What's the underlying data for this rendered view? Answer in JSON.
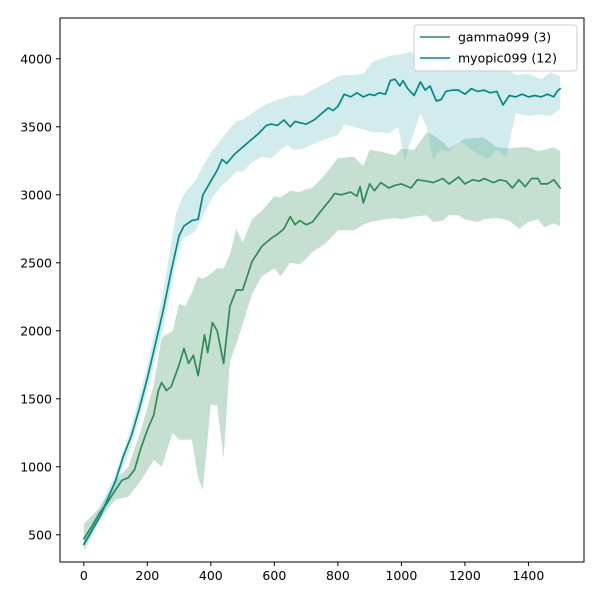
{
  "chart_data": {
    "type": "line",
    "title": "",
    "xlabel": "",
    "ylabel": "",
    "xlim": [
      -75,
      1575
    ],
    "ylim": [
      300,
      4300
    ],
    "xticks": [
      0,
      200,
      400,
      600,
      800,
      1000,
      1200,
      1400
    ],
    "yticks": [
      500,
      1000,
      1500,
      2000,
      2500,
      3000,
      3500,
      4000
    ],
    "grid": false,
    "legend_position": "top-right",
    "series": [
      {
        "name": "gamma099 (3)",
        "color": "#2e8b57",
        "band_color": "#2e8b57",
        "points": [
          [
            0,
            470
          ],
          [
            25,
            560
          ],
          [
            50,
            660
          ],
          [
            75,
            740
          ],
          [
            100,
            830
          ],
          [
            120,
            900
          ],
          [
            140,
            920
          ],
          [
            160,
            980
          ],
          [
            180,
            1140
          ],
          [
            200,
            1270
          ],
          [
            220,
            1380
          ],
          [
            235,
            1560
          ],
          [
            245,
            1620
          ],
          [
            260,
            1560
          ],
          [
            275,
            1590
          ],
          [
            300,
            1750
          ],
          [
            315,
            1870
          ],
          [
            330,
            1760
          ],
          [
            345,
            1820
          ],
          [
            360,
            1670
          ],
          [
            380,
            1970
          ],
          [
            390,
            1840
          ],
          [
            405,
            2060
          ],
          [
            420,
            2000
          ],
          [
            440,
            1760
          ],
          [
            460,
            2180
          ],
          [
            480,
            2300
          ],
          [
            500,
            2300
          ],
          [
            530,
            2510
          ],
          [
            560,
            2620
          ],
          [
            575,
            2650
          ],
          [
            590,
            2680
          ],
          [
            610,
            2710
          ],
          [
            630,
            2750
          ],
          [
            650,
            2840
          ],
          [
            665,
            2780
          ],
          [
            680,
            2810
          ],
          [
            700,
            2780
          ],
          [
            720,
            2800
          ],
          [
            740,
            2860
          ],
          [
            760,
            2920
          ],
          [
            775,
            2960
          ],
          [
            790,
            3010
          ],
          [
            810,
            3000
          ],
          [
            840,
            3020
          ],
          [
            860,
            2990
          ],
          [
            870,
            3060
          ],
          [
            880,
            2940
          ],
          [
            900,
            3080
          ],
          [
            915,
            3030
          ],
          [
            935,
            3090
          ],
          [
            960,
            3050
          ],
          [
            980,
            3070
          ],
          [
            1000,
            3080
          ],
          [
            1030,
            3050
          ],
          [
            1050,
            3110
          ],
          [
            1080,
            3100
          ],
          [
            1100,
            3090
          ],
          [
            1130,
            3120
          ],
          [
            1150,
            3080
          ],
          [
            1180,
            3130
          ],
          [
            1200,
            3080
          ],
          [
            1225,
            3110
          ],
          [
            1245,
            3100
          ],
          [
            1260,
            3120
          ],
          [
            1290,
            3090
          ],
          [
            1310,
            3110
          ],
          [
            1330,
            3100
          ],
          [
            1350,
            3050
          ],
          [
            1370,
            3110
          ],
          [
            1390,
            3060
          ],
          [
            1410,
            3120
          ],
          [
            1430,
            3120
          ],
          [
            1440,
            3080
          ],
          [
            1460,
            3080
          ],
          [
            1480,
            3110
          ],
          [
            1500,
            3050
          ]
        ],
        "band": [
          [
            0,
            400,
            580
          ],
          [
            50,
            620,
            700
          ],
          [
            100,
            760,
            900
          ],
          [
            140,
            780,
            1000
          ],
          [
            180,
            900,
            1270
          ],
          [
            220,
            1050,
            1600
          ],
          [
            245,
            1000,
            1950
          ],
          [
            280,
            1250,
            2000
          ],
          [
            300,
            1200,
            2200
          ],
          [
            320,
            1200,
            2180
          ],
          [
            340,
            1200,
            2280
          ],
          [
            360,
            920,
            2400
          ],
          [
            375,
            830,
            2380
          ],
          [
            400,
            1460,
            2420
          ],
          [
            420,
            1450,
            2460
          ],
          [
            440,
            1060,
            2460
          ],
          [
            460,
            1780,
            2560
          ],
          [
            480,
            1900,
            2750
          ],
          [
            500,
            2050,
            2650
          ],
          [
            530,
            2270,
            2820
          ],
          [
            560,
            2400,
            2880
          ],
          [
            600,
            2460,
            2990
          ],
          [
            620,
            2400,
            2980
          ],
          [
            650,
            2500,
            3030
          ],
          [
            680,
            2490,
            3020
          ],
          [
            700,
            2530,
            3040
          ],
          [
            720,
            2580,
            3050
          ],
          [
            760,
            2640,
            3150
          ],
          [
            800,
            2740,
            3270
          ],
          [
            850,
            2740,
            3280
          ],
          [
            880,
            2780,
            3210
          ],
          [
            900,
            2800,
            3330
          ],
          [
            950,
            2820,
            3310
          ],
          [
            980,
            2830,
            3290
          ],
          [
            1000,
            2820,
            3340
          ],
          [
            1040,
            2840,
            3330
          ],
          [
            1080,
            2850,
            3460
          ],
          [
            1100,
            2800,
            3440
          ],
          [
            1130,
            2810,
            3390
          ],
          [
            1150,
            2850,
            3340
          ],
          [
            1180,
            2850,
            3390
          ],
          [
            1200,
            2820,
            3410
          ],
          [
            1240,
            2800,
            3420
          ],
          [
            1260,
            2820,
            3420
          ],
          [
            1300,
            2830,
            3350
          ],
          [
            1340,
            2810,
            3340
          ],
          [
            1370,
            2750,
            3350
          ],
          [
            1400,
            2800,
            3350
          ],
          [
            1430,
            2820,
            3320
          ],
          [
            1450,
            2760,
            3330
          ],
          [
            1480,
            2790,
            3350
          ],
          [
            1500,
            2770,
            3320
          ]
        ]
      },
      {
        "name": "myopic099 (12)",
        "color": "#008b8b",
        "band_color": "#5fb9c1",
        "points": [
          [
            0,
            430
          ],
          [
            25,
            530
          ],
          [
            50,
            630
          ],
          [
            75,
            760
          ],
          [
            100,
            900
          ],
          [
            125,
            1080
          ],
          [
            150,
            1230
          ],
          [
            175,
            1430
          ],
          [
            200,
            1650
          ],
          [
            225,
            1900
          ],
          [
            250,
            2150
          ],
          [
            275,
            2440
          ],
          [
            300,
            2700
          ],
          [
            315,
            2770
          ],
          [
            340,
            2810
          ],
          [
            360,
            2820
          ],
          [
            375,
            3000
          ],
          [
            400,
            3100
          ],
          [
            420,
            3180
          ],
          [
            435,
            3260
          ],
          [
            450,
            3230
          ],
          [
            475,
            3300
          ],
          [
            500,
            3350
          ],
          [
            525,
            3400
          ],
          [
            550,
            3450
          ],
          [
            575,
            3510
          ],
          [
            590,
            3520
          ],
          [
            610,
            3510
          ],
          [
            630,
            3550
          ],
          [
            650,
            3500
          ],
          [
            665,
            3540
          ],
          [
            680,
            3530
          ],
          [
            700,
            3520
          ],
          [
            725,
            3550
          ],
          [
            750,
            3600
          ],
          [
            770,
            3640
          ],
          [
            785,
            3620
          ],
          [
            800,
            3650
          ],
          [
            820,
            3740
          ],
          [
            840,
            3720
          ],
          [
            860,
            3750
          ],
          [
            880,
            3720
          ],
          [
            900,
            3740
          ],
          [
            915,
            3730
          ],
          [
            930,
            3750
          ],
          [
            950,
            3740
          ],
          [
            965,
            3840
          ],
          [
            980,
            3850
          ],
          [
            995,
            3800
          ],
          [
            1005,
            3840
          ],
          [
            1020,
            3780
          ],
          [
            1040,
            3730
          ],
          [
            1060,
            3830
          ],
          [
            1075,
            3770
          ],
          [
            1090,
            3800
          ],
          [
            1110,
            3690
          ],
          [
            1125,
            3700
          ],
          [
            1140,
            3760
          ],
          [
            1160,
            3770
          ],
          [
            1180,
            3770
          ],
          [
            1200,
            3740
          ],
          [
            1220,
            3780
          ],
          [
            1240,
            3760
          ],
          [
            1260,
            3770
          ],
          [
            1280,
            3750
          ],
          [
            1300,
            3760
          ],
          [
            1320,
            3660
          ],
          [
            1340,
            3730
          ],
          [
            1360,
            3720
          ],
          [
            1380,
            3740
          ],
          [
            1400,
            3720
          ],
          [
            1420,
            3730
          ],
          [
            1440,
            3720
          ],
          [
            1460,
            3740
          ],
          [
            1480,
            3720
          ],
          [
            1490,
            3760
          ],
          [
            1500,
            3780
          ]
        ],
        "band": [
          [
            0,
            370,
            480
          ],
          [
            50,
            600,
            690
          ],
          [
            100,
            840,
            950
          ],
          [
            150,
            1160,
            1300
          ],
          [
            200,
            1560,
            1740
          ],
          [
            250,
            2020,
            2280
          ],
          [
            290,
            2500,
            2860
          ],
          [
            310,
            2680,
            2980
          ],
          [
            330,
            2700,
            3050
          ],
          [
            350,
            2730,
            3100
          ],
          [
            380,
            2870,
            3230
          ],
          [
            400,
            2960,
            3310
          ],
          [
            430,
            3060,
            3400
          ],
          [
            450,
            3100,
            3460
          ],
          [
            480,
            3170,
            3540
          ],
          [
            500,
            3170,
            3550
          ],
          [
            530,
            3240,
            3600
          ],
          [
            560,
            3280,
            3650
          ],
          [
            590,
            3270,
            3680
          ],
          [
            610,
            3310,
            3700
          ],
          [
            640,
            3370,
            3720
          ],
          [
            660,
            3330,
            3730
          ],
          [
            690,
            3340,
            3730
          ],
          [
            720,
            3370,
            3770
          ],
          [
            760,
            3410,
            3820
          ],
          [
            800,
            3440,
            3870
          ],
          [
            820,
            3520,
            3880
          ],
          [
            850,
            3500,
            3880
          ],
          [
            880,
            3480,
            3890
          ],
          [
            910,
            3460,
            3980
          ],
          [
            940,
            3460,
            4000
          ],
          [
            960,
            3450,
            4020
          ],
          [
            990,
            3500,
            4030
          ],
          [
            1010,
            3250,
            4040
          ],
          [
            1030,
            3400,
            4050
          ],
          [
            1060,
            3600,
            4000
          ],
          [
            1080,
            3500,
            4060
          ],
          [
            1100,
            3250,
            3940
          ],
          [
            1120,
            3330,
            3920
          ],
          [
            1150,
            3320,
            3980
          ],
          [
            1180,
            3400,
            4020
          ],
          [
            1210,
            3350,
            4050
          ],
          [
            1240,
            3300,
            3990
          ],
          [
            1270,
            3260,
            3950
          ],
          [
            1300,
            3330,
            3920
          ],
          [
            1330,
            3280,
            3930
          ],
          [
            1360,
            3600,
            3880
          ],
          [
            1400,
            3580,
            3890
          ],
          [
            1440,
            3590,
            3850
          ],
          [
            1470,
            3580,
            3900
          ],
          [
            1500,
            3630,
            3870
          ]
        ]
      }
    ]
  }
}
